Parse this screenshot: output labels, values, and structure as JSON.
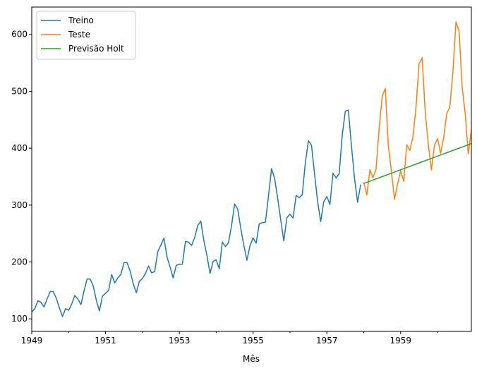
{
  "chart_data": {
    "type": "line",
    "title": "",
    "xlabel": "Mês",
    "ylabel": "",
    "x_unit": "year",
    "xlim": [
      1949,
      1960.917
    ],
    "ylim": [
      78,
      648
    ],
    "grid": false,
    "legend_position": "top-left",
    "x_ticks": [
      {
        "value": 1949,
        "label": "1949"
      },
      {
        "value": 1951,
        "label": "1951"
      },
      {
        "value": 1953,
        "label": "1953"
      },
      {
        "value": 1955,
        "label": "1955"
      },
      {
        "value": 1957,
        "label": "1957"
      },
      {
        "value": 1959,
        "label": "1959"
      }
    ],
    "x_minor_ticks": [
      1950,
      1952,
      1954,
      1956,
      1958,
      1960
    ],
    "y_ticks": [
      {
        "value": 100,
        "label": "100"
      },
      {
        "value": 200,
        "label": "200"
      },
      {
        "value": 300,
        "label": "300"
      },
      {
        "value": 400,
        "label": "400"
      },
      {
        "value": 500,
        "label": "500"
      },
      {
        "value": 600,
        "label": "600"
      }
    ],
    "series": [
      {
        "name": "Treino",
        "color": "#1f77b4",
        "start": 1949,
        "step": 0.08333,
        "values": [
          112,
          118,
          132,
          129,
          121,
          135,
          148,
          148,
          136,
          119,
          104,
          118,
          115,
          126,
          141,
          135,
          125,
          149,
          170,
          170,
          158,
          133,
          114,
          140,
          145,
          150,
          178,
          163,
          172,
          178,
          199,
          199,
          184,
          162,
          146,
          166,
          171,
          180,
          193,
          181,
          183,
          218,
          230,
          242,
          209,
          191,
          172,
          194,
          196,
          196,
          236,
          235,
          229,
          243,
          264,
          272,
          237,
          211,
          180,
          201,
          204,
          188,
          235,
          227,
          234,
          264,
          302,
          293,
          259,
          229,
          203,
          229,
          242,
          233,
          267,
          269,
          270,
          315,
          364,
          347,
          312,
          274,
          237,
          278,
          284,
          277,
          317,
          313,
          318,
          374,
          413,
          405,
          355,
          306,
          271,
          306,
          315,
          301,
          356,
          348,
          355,
          422,
          465,
          467,
          404,
          347,
          305,
          336
        ]
      },
      {
        "name": "Teste",
        "color": "#ff7f0e",
        "start": 1958,
        "step": 0.08333,
        "values": [
          340,
          318,
          362,
          348,
          363,
          435,
          491,
          505,
          404,
          359,
          310,
          337,
          360,
          342,
          406,
          396,
          420,
          472,
          548,
          559,
          463,
          407,
          362,
          405,
          417,
          391,
          419,
          461,
          472,
          535,
          622,
          606,
          508,
          461,
          390,
          432
        ]
      },
      {
        "name": "Previsão Holt",
        "color": "#2ca02c",
        "start": 1958,
        "step": 0.08333,
        "values": [
          338,
          340,
          342,
          344,
          346,
          348,
          350,
          352,
          354,
          356,
          358,
          360,
          362,
          364,
          366,
          368,
          370,
          372,
          374,
          376,
          378,
          380,
          382,
          384,
          386,
          388,
          390,
          392,
          394,
          396,
          398,
          400,
          402,
          404,
          406,
          408
        ]
      }
    ]
  }
}
